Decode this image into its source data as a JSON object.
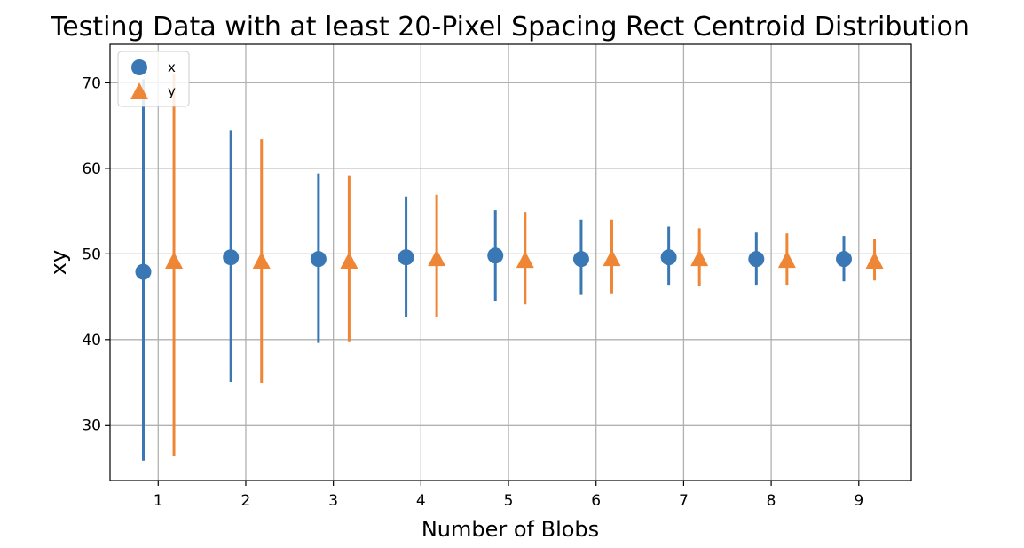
{
  "chart_data": {
    "type": "scatter",
    "title": "Testing Data with at least 20-Pixel Spacing Rect Centroid Distribution",
    "xlabel": "Number of Blobs",
    "ylabel": "xy",
    "xlim": [
      0.45,
      9.6
    ],
    "ylim": [
      23.5,
      74.5
    ],
    "xticks": [
      1,
      2,
      3,
      4,
      5,
      6,
      7,
      8,
      9
    ],
    "yticks": [
      30,
      40,
      50,
      60,
      70
    ],
    "grid": true,
    "legend_position": "top-left",
    "series": [
      {
        "name": "x",
        "marker": "circle",
        "color": "#3a78b5",
        "x": [
          0.83,
          1.83,
          2.83,
          3.83,
          4.85,
          5.83,
          6.83,
          7.83,
          8.83
        ],
        "y": [
          47.9,
          49.6,
          49.4,
          49.6,
          49.8,
          49.4,
          49.6,
          49.4,
          49.4
        ],
        "err_low": [
          25.8,
          35.0,
          39.6,
          42.6,
          44.5,
          45.2,
          46.4,
          46.4,
          46.8
        ],
        "err_high": [
          70.4,
          64.4,
          59.4,
          56.7,
          55.1,
          54.0,
          53.2,
          52.5,
          52.1
        ]
      },
      {
        "name": "y",
        "marker": "triangle",
        "color": "#ef8636",
        "x": [
          1.18,
          2.18,
          3.18,
          4.18,
          5.19,
          6.18,
          7.18,
          8.18,
          9.18
        ],
        "y": [
          49.1,
          49.1,
          49.1,
          49.4,
          49.2,
          49.4,
          49.4,
          49.2,
          49.1
        ],
        "err_low": [
          26.4,
          34.9,
          39.7,
          42.6,
          44.1,
          45.4,
          46.2,
          46.4,
          46.9
        ],
        "err_high": [
          71.1,
          63.4,
          59.2,
          56.9,
          54.9,
          54.0,
          53.0,
          52.4,
          51.7
        ]
      }
    ]
  }
}
